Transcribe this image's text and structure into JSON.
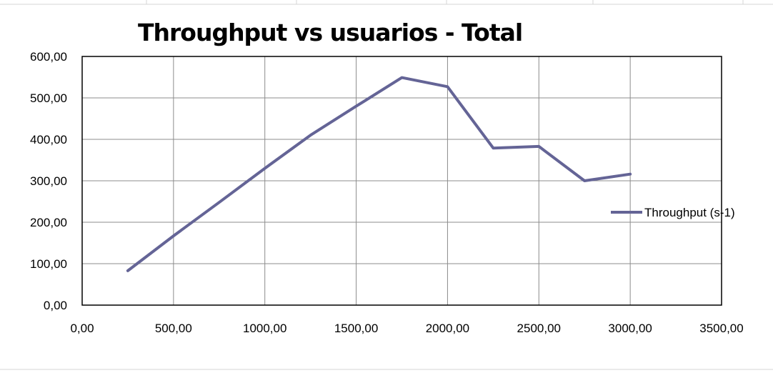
{
  "chart_data": {
    "type": "line",
    "title": "Throughput vs usuarios - Total",
    "xlabel": "",
    "ylabel": "",
    "xlim": [
      0,
      3500
    ],
    "ylim": [
      0,
      600
    ],
    "x_ticks": [
      "0,00",
      "500,00",
      "1000,00",
      "1500,00",
      "2000,00",
      "2500,00",
      "3000,00",
      "3500,00"
    ],
    "y_ticks": [
      "0,00",
      "100,00",
      "200,00",
      "300,00",
      "400,00",
      "500,00",
      "600,00"
    ],
    "grid": true,
    "legend_position": "right",
    "series": [
      {
        "name": "Throughput (s-1)",
        "color": "#646496",
        "x": [
          250,
          500,
          750,
          1000,
          1250,
          1500,
          1750,
          2000,
          2250,
          2500,
          2750,
          3000
        ],
        "y": [
          83,
          167,
          248,
          330,
          410,
          480,
          549,
          527,
          379,
          383,
          300,
          316
        ]
      }
    ]
  }
}
